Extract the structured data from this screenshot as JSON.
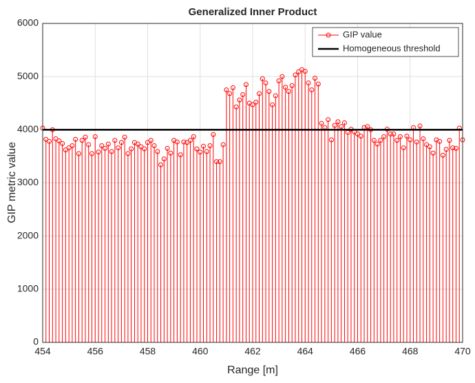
{
  "chart_data": {
    "type": "stem",
    "title": "Generalized Inner Product",
    "x_label": "Range [m]",
    "y_label": "GIP metric value",
    "xlim": [
      454,
      470
    ],
    "xticks": [
      454,
      456,
      458,
      460,
      462,
      464,
      466,
      468,
      470
    ],
    "ylim": [
      0,
      6000
    ],
    "yticks": [
      0,
      1000,
      2000,
      3000,
      4000,
      5000,
      6000
    ],
    "grid": true,
    "legend": "upper right",
    "series": [
      {
        "name": "GIP value",
        "color": "#ff0000",
        "x": [
          454,
          454.125,
          454.25,
          454.375,
          454.5,
          454.625,
          454.75,
          454.875,
          455,
          455.125,
          455.25,
          455.375,
          455.5,
          455.625,
          455.75,
          455.875,
          456,
          456.125,
          456.25,
          456.375,
          456.5,
          456.625,
          456.75,
          456.875,
          457,
          457.125,
          457.25,
          457.375,
          457.5,
          457.625,
          457.75,
          457.875,
          458,
          458.125,
          458.25,
          458.375,
          458.5,
          458.625,
          458.75,
          458.875,
          459,
          459.125,
          459.25,
          459.375,
          459.5,
          459.625,
          459.75,
          459.875,
          460,
          460.125,
          460.25,
          460.375,
          460.5,
          460.625,
          460.75,
          460.875,
          461,
          461.125,
          461.25,
          461.375,
          461.5,
          461.625,
          461.75,
          461.875,
          462,
          462.125,
          462.25,
          462.375,
          462.5,
          462.625,
          462.75,
          462.875,
          463,
          463.125,
          463.25,
          463.375,
          463.5,
          463.625,
          463.75,
          463.875,
          464,
          464.125,
          464.25,
          464.375,
          464.5,
          464.625,
          464.75,
          464.875,
          465,
          465.125,
          465.25,
          465.375,
          465.5,
          465.625,
          465.75,
          465.875,
          466,
          466.125,
          466.25,
          466.375,
          466.5,
          466.625,
          466.75,
          466.875,
          467,
          467.125,
          467.25,
          467.375,
          467.5,
          467.625,
          467.75,
          467.875,
          468,
          468.125,
          468.25,
          468.375,
          468.5,
          468.625,
          468.75,
          468.875,
          469,
          469.125,
          469.25,
          469.375,
          469.5,
          469.625,
          469.75,
          469.875,
          470
        ],
        "values": [
          4030,
          3820,
          3780,
          4000,
          3830,
          3790,
          3740,
          3620,
          3660,
          3700,
          3820,
          3550,
          3800,
          3860,
          3720,
          3550,
          3870,
          3580,
          3700,
          3650,
          3730,
          3590,
          3800,
          3660,
          3760,
          3860,
          3550,
          3640,
          3760,
          3730,
          3680,
          3640,
          3760,
          3800,
          3700,
          3590,
          3340,
          3450,
          3650,
          3560,
          3800,
          3770,
          3530,
          3770,
          3760,
          3800,
          3870,
          3640,
          3580,
          3690,
          3590,
          3700,
          3910,
          3400,
          3400,
          3720,
          4750,
          4680,
          4790,
          4430,
          4560,
          4660,
          4850,
          4500,
          4470,
          4520,
          4680,
          4960,
          4880,
          4720,
          4470,
          4640,
          4920,
          5000,
          4800,
          4720,
          4830,
          5030,
          5090,
          5130,
          5100,
          4880,
          4750,
          4970,
          4860,
          4120,
          4040,
          4190,
          3810,
          4080,
          4150,
          4060,
          4130,
          3950,
          4010,
          3960,
          3920,
          3880,
          4040,
          4060,
          4000,
          3800,
          3730,
          3800,
          3870,
          4010,
          3920,
          3920,
          3800,
          3870,
          3660,
          3880,
          3810,
          4040,
          3770,
          4070,
          3830,
          3720,
          3680,
          3560,
          3810,
          3780,
          3520,
          3630,
          3800,
          3660,
          3650,
          4030,
          3810
        ]
      },
      {
        "name": "Homogeneous threshold",
        "color": "#000000",
        "value": 4000
      }
    ]
  }
}
